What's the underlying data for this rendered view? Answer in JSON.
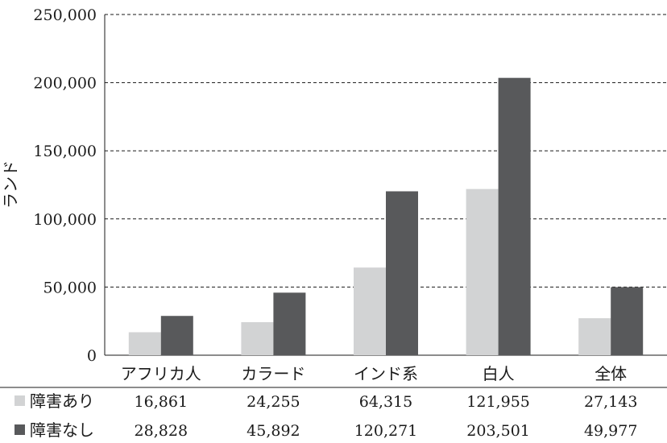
{
  "chart_data": {
    "type": "bar",
    "ylabel": "ランド",
    "ylim": [
      0,
      250000
    ],
    "yticks": [
      {
        "value": 0,
        "label": "0"
      },
      {
        "value": 50000,
        "label": "50,000"
      },
      {
        "value": 100000,
        "label": "100,000"
      },
      {
        "value": 150000,
        "label": "150,000"
      },
      {
        "value": 200000,
        "label": "200,000"
      },
      {
        "value": 250000,
        "label": "250,000"
      }
    ],
    "grid": true,
    "legend_placement": "table-left",
    "categories": [
      "アフリカ人",
      "カラード",
      "インド系",
      "白人",
      "全体"
    ],
    "series": [
      {
        "name": "障害あり",
        "color": "#d2d3d4",
        "values": [
          16861,
          24255,
          64315,
          121955,
          27143
        ],
        "value_labels": [
          "16,861",
          "24,255",
          "64,315",
          "121,955",
          "27,143"
        ]
      },
      {
        "name": "障害なし",
        "color": "#58595b",
        "values": [
          28828,
          45892,
          120271,
          203501,
          49977
        ],
        "value_labels": [
          "28,828",
          "45,892",
          "120,271",
          "203,501",
          "49,977"
        ]
      }
    ]
  }
}
